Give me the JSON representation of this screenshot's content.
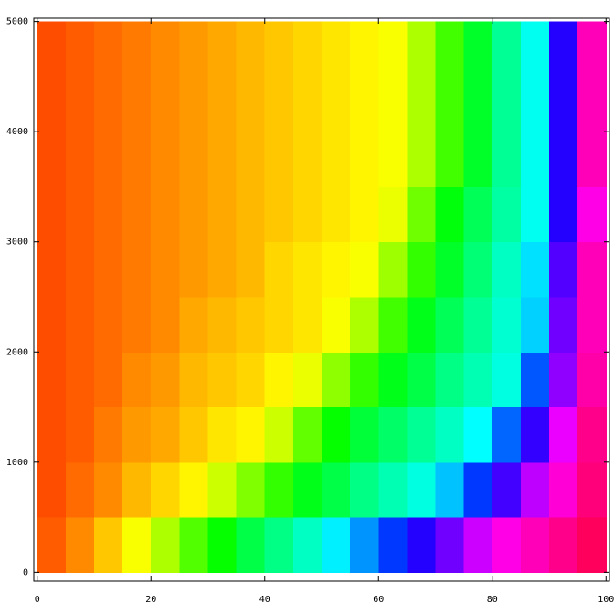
{
  "chart_data": {
    "type": "heatmap",
    "colormap": "hue",
    "x_bins": [
      0,
      5,
      10,
      15,
      20,
      25,
      30,
      35,
      40,
      45,
      50,
      55,
      60,
      65,
      70,
      75,
      80,
      85,
      90,
      95,
      100
    ],
    "y_bins": [
      0,
      500,
      1000,
      1500,
      2000,
      2500,
      3000,
      3500,
      4000,
      4500,
      5000
    ],
    "z": [
      [
        0.06,
        0.09,
        0.13,
        0.17,
        0.22,
        0.28,
        0.33,
        0.38,
        0.42,
        0.46,
        0.51,
        0.57,
        0.63,
        0.69,
        0.74,
        0.8,
        0.85,
        0.88,
        0.91,
        0.94
      ],
      [
        0.05,
        0.07,
        0.09,
        0.12,
        0.14,
        0.16,
        0.2,
        0.25,
        0.3,
        0.35,
        0.38,
        0.42,
        0.45,
        0.48,
        0.54,
        0.63,
        0.71,
        0.79,
        0.86,
        0.92
      ],
      [
        0.05,
        0.06,
        0.08,
        0.1,
        0.11,
        0.13,
        0.15,
        0.16,
        0.2,
        0.27,
        0.33,
        0.37,
        0.4,
        0.43,
        0.46,
        0.5,
        0.6,
        0.7,
        0.82,
        0.91
      ],
      [
        0.05,
        0.06,
        0.07,
        0.09,
        0.1,
        0.12,
        0.13,
        0.14,
        0.16,
        0.18,
        0.24,
        0.3,
        0.35,
        0.38,
        0.42,
        0.45,
        0.48,
        0.61,
        0.76,
        0.89
      ],
      [
        0.05,
        0.06,
        0.07,
        0.08,
        0.09,
        0.11,
        0.12,
        0.13,
        0.14,
        0.15,
        0.17,
        0.22,
        0.29,
        0.35,
        0.39,
        0.43,
        0.47,
        0.53,
        0.74,
        0.88
      ],
      [
        0.05,
        0.06,
        0.07,
        0.08,
        0.09,
        0.1,
        0.11,
        0.12,
        0.14,
        0.15,
        0.16,
        0.17,
        0.23,
        0.3,
        0.36,
        0.41,
        0.46,
        0.52,
        0.72,
        0.88
      ],
      [
        0.05,
        0.06,
        0.07,
        0.08,
        0.09,
        0.1,
        0.11,
        0.12,
        0.13,
        0.14,
        0.15,
        0.16,
        0.18,
        0.26,
        0.34,
        0.39,
        0.44,
        0.49,
        0.69,
        0.85
      ],
      [
        0.05,
        0.06,
        0.07,
        0.08,
        0.09,
        0.1,
        0.11,
        0.12,
        0.13,
        0.14,
        0.15,
        0.16,
        0.17,
        0.22,
        0.29,
        0.36,
        0.43,
        0.49,
        0.69,
        0.88
      ],
      [
        0.05,
        0.06,
        0.07,
        0.08,
        0.09,
        0.1,
        0.11,
        0.12,
        0.13,
        0.14,
        0.15,
        0.16,
        0.17,
        0.22,
        0.29,
        0.36,
        0.43,
        0.49,
        0.69,
        0.88
      ],
      [
        0.05,
        0.06,
        0.07,
        0.08,
        0.09,
        0.1,
        0.11,
        0.12,
        0.13,
        0.14,
        0.15,
        0.16,
        0.17,
        0.22,
        0.29,
        0.36,
        0.43,
        0.49,
        0.69,
        0.88
      ]
    ],
    "xlim": [
      -0.6,
      100.6
    ],
    "ylim": [
      -80,
      5030
    ],
    "xticks": [
      0,
      20,
      40,
      60,
      80,
      100
    ],
    "yticks": [
      0,
      1000,
      2000,
      3000,
      4000,
      5000
    ]
  }
}
